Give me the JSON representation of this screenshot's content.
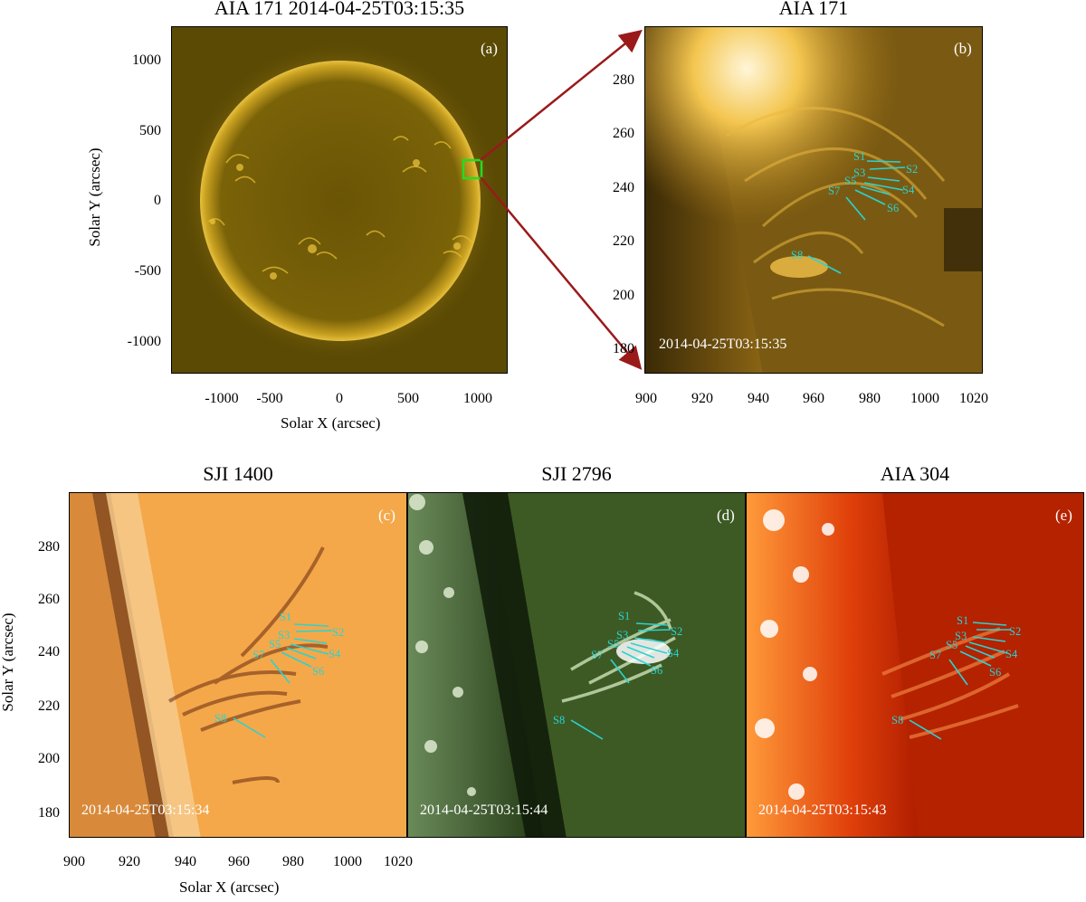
{
  "panels": {
    "a": {
      "title": "AIA 171 2014-04-25T03:15:35",
      "letter": "(a)",
      "xlabel": "Solar X (arcsec)",
      "ylabel": "Solar Y (arcsec)",
      "xticks": [
        "-1000",
        "-500",
        "0",
        "500",
        "1000"
      ],
      "yticks": [
        "1000",
        "500",
        "0",
        "-500",
        "-1000"
      ]
    },
    "b": {
      "title": "AIA 171",
      "letter": "(b)",
      "timestamp": "2014-04-25T03:15:35",
      "xticks": [
        "900",
        "920",
        "940",
        "960",
        "980",
        "1000",
        "1020"
      ],
      "yticks": [
        "280",
        "260",
        "240",
        "220",
        "200",
        "180"
      ]
    },
    "c": {
      "title": "SJI 1400",
      "letter": "(c)",
      "timestamp": "2014-04-25T03:15:34",
      "xlabel": "Solar X (arcsec)",
      "ylabel": "Solar Y (arcsec)",
      "xticks": [
        "900",
        "920",
        "940",
        "960",
        "980",
        "1000",
        "1020"
      ],
      "yticks": [
        "280",
        "260",
        "240",
        "220",
        "200",
        "180"
      ]
    },
    "d": {
      "title": "SJI 2796",
      "letter": "(d)",
      "timestamp": "2014-04-25T03:15:44"
    },
    "e": {
      "title": "AIA 304",
      "letter": "(e)",
      "timestamp": "2014-04-25T03:15:43"
    }
  },
  "structures": [
    "S1",
    "S2",
    "S3",
    "S4",
    "S5",
    "S6",
    "S7",
    "S8"
  ],
  "colors": {
    "annotation": "#29d3d3",
    "zoom_box": "#22dd22",
    "zoom_arrow": "#9a1a1a"
  }
}
